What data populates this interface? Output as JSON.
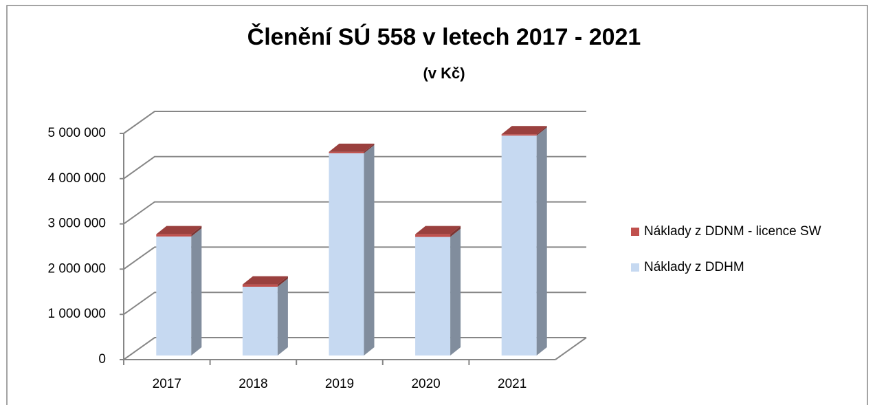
{
  "chart_data": {
    "type": "bar3d_stacked",
    "title": "Členění SÚ 558 v letech 2017 - 2021",
    "subtitle": "(v Kč)",
    "categories": [
      "2017",
      "2018",
      "2019",
      "2020",
      "2021"
    ],
    "series": [
      {
        "name": "Náklady z DDHM",
        "color": "#c6d9f1",
        "values": [
          2630000,
          1520000,
          4470000,
          2620000,
          4860000
        ]
      },
      {
        "name": "Náklady z DDNM - licence SW",
        "color": "#c0504d",
        "values": [
          50000,
          50000,
          30000,
          60000,
          30000
        ]
      }
    ],
    "ylim": [
      0,
      5000000
    ],
    "yticks": [
      0,
      {
        "value": 1000000,
        "label": "1 000 000"
      },
      {
        "value": 2000000,
        "label": "2 000 000"
      },
      {
        "value": 3000000,
        "label": "3 000 000"
      },
      {
        "value": 4000000,
        "label": "4 000 000"
      },
      {
        "value": 5000000,
        "label": "5 000 000"
      }
    ],
    "grid": true,
    "legend": "right"
  }
}
